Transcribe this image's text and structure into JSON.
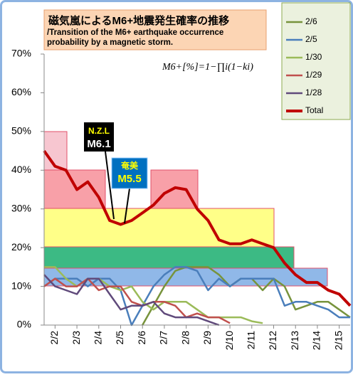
{
  "chart_data": {
    "type": "line",
    "title": "磁気嵐によるM6+地震発生確率の推移",
    "subtitle": "/Transition of the M6+ earthquake occurrence probability by a magnetic storm.",
    "formula": "M6+[%]=1−∏i(1−ki)",
    "annotations": [
      {
        "place": "N.Z.L",
        "magnitude": "M6.1"
      },
      {
        "place": "奄美",
        "magnitude": "M5.5"
      }
    ],
    "categories": [
      null,
      "2/2",
      null,
      "2/3",
      null,
      "2/4",
      null,
      "2/5",
      null,
      "2/6",
      null,
      "2/7",
      null,
      "2/8",
      null,
      "2/9",
      null,
      "2/10",
      null,
      "2/11",
      null,
      "2/12",
      null,
      "2/13",
      null,
      "2/14",
      null,
      "2/15",
      null
    ],
    "ylim": [
      0,
      70
    ],
    "yticks": [
      {
        "value": 0,
        "label": "0%"
      },
      {
        "value": 10,
        "label": "10%"
      },
      {
        "value": 20,
        "label": "20%"
      },
      {
        "value": 30,
        "label": "30%"
      },
      {
        "value": 40,
        "label": "40%"
      },
      {
        "value": 50,
        "label": "50%"
      },
      {
        "value": 60,
        "label": "60%"
      },
      {
        "value": 70,
        "label": "70%"
      }
    ],
    "grid": false,
    "legend": "upper right",
    "series": [
      {
        "name": "2/6",
        "color": "#77933c",
        "width": 2.5,
        "values": [
          null,
          null,
          null,
          null,
          null,
          null,
          null,
          null,
          null,
          0,
          5,
          10,
          14,
          15,
          15,
          15,
          13,
          10,
          12,
          12,
          9,
          12,
          10,
          4,
          5,
          6,
          6,
          4,
          2
        ]
      },
      {
        "name": "2/5",
        "color": "#4a7ebb",
        "width": 2.5,
        "values": [
          10,
          12,
          12,
          12,
          10,
          12,
          12,
          9,
          0,
          5,
          10,
          13,
          15,
          15,
          14,
          9,
          12,
          10,
          12,
          12,
          12,
          12,
          5,
          6,
          6,
          5,
          4,
          2,
          2
        ]
      },
      {
        "name": "1/30",
        "color": "#9bbb59",
        "width": 2.5,
        "values": [
          15,
          15,
          12,
          10,
          12,
          12,
          10,
          9,
          10,
          6,
          4,
          6,
          6,
          6,
          4,
          2,
          2,
          2,
          2,
          1,
          0.5,
          null,
          null,
          null,
          null,
          null,
          null,
          null,
          null
        ]
      },
      {
        "name": "1/29",
        "color": "#c0504d",
        "width": 2.5,
        "values": [
          10,
          12,
          10,
          10,
          12,
          9,
          10,
          10,
          6,
          5,
          6,
          6,
          5,
          2,
          3,
          2,
          2,
          0.5,
          null,
          null,
          null,
          null,
          null,
          null,
          null,
          null,
          null,
          null,
          null
        ]
      },
      {
        "name": "1/28",
        "color": "#604a7b",
        "width": 2.5,
        "values": [
          13,
          10,
          9,
          8,
          12,
          12,
          8,
          4,
          5,
          5,
          6,
          3,
          2,
          2,
          2,
          1,
          0,
          null,
          null,
          null,
          null,
          null,
          null,
          null,
          null,
          null,
          null,
          null,
          null
        ]
      },
      {
        "name": "Total",
        "color": "#c00000",
        "width": 4,
        "values": [
          45,
          41,
          40,
          35,
          37,
          33,
          27,
          26,
          27,
          29,
          31,
          34,
          35.5,
          35,
          30,
          27,
          22,
          21,
          21,
          22,
          21,
          20,
          16,
          13,
          11,
          11,
          9,
          8,
          5
        ]
      }
    ]
  }
}
